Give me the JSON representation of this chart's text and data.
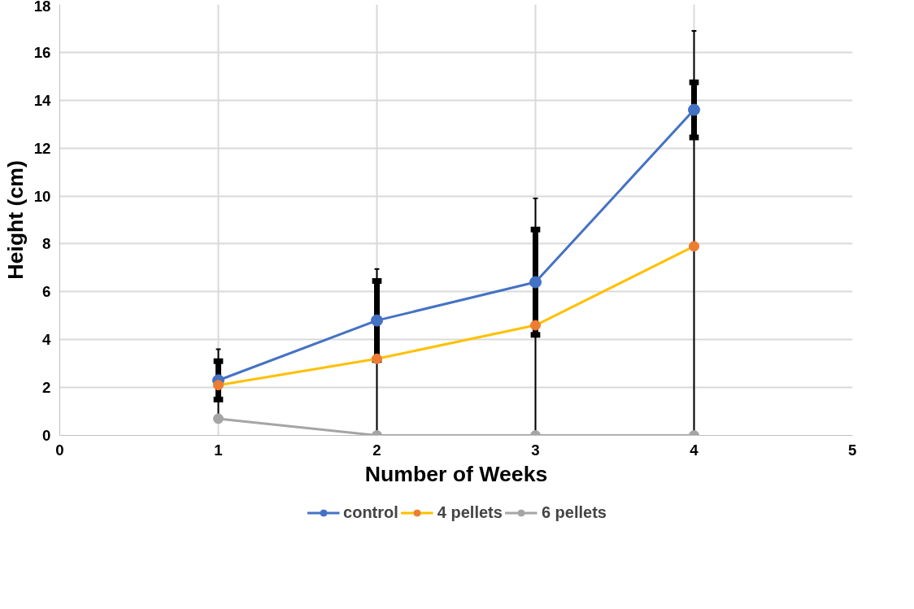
{
  "chart_data": {
    "type": "line",
    "xlabel": "Number of Weeks",
    "ylabel": "Height (cm)",
    "x": [
      1,
      2,
      3,
      4
    ],
    "series": [
      {
        "name": "control",
        "color": "#4472c4",
        "values": [
          2.3,
          4.8,
          6.4,
          13.6
        ],
        "errors": [
          0.8,
          1.65,
          2.2,
          1.15
        ]
      },
      {
        "name": "4 pellets",
        "color": "#ffc000",
        "colors": [
          "#ed7d31",
          "#ed7d31",
          "#ed7d31",
          "#ed7d31"
        ],
        "values": [
          2.1,
          3.2,
          4.6,
          7.9
        ],
        "errors": [
          1.5,
          [
            0,
            6.95
          ],
          [
            0,
            9.9
          ],
          [
            0,
            16.9
          ]
        ]
      },
      {
        "name": "6 pellets",
        "color": "#a5a5a5",
        "values": [
          0.7,
          0,
          0,
          0
        ]
      }
    ],
    "xlim": [
      0,
      5
    ],
    "xticks": [
      0,
      1,
      2,
      3,
      4,
      5
    ],
    "ylim": [
      0,
      18
    ],
    "yticks": [
      0,
      2,
      4,
      6,
      8,
      10,
      12,
      14,
      16,
      18
    ],
    "grid": true,
    "legend": "bottom",
    "marker": "circle",
    "line_style": "solid"
  }
}
